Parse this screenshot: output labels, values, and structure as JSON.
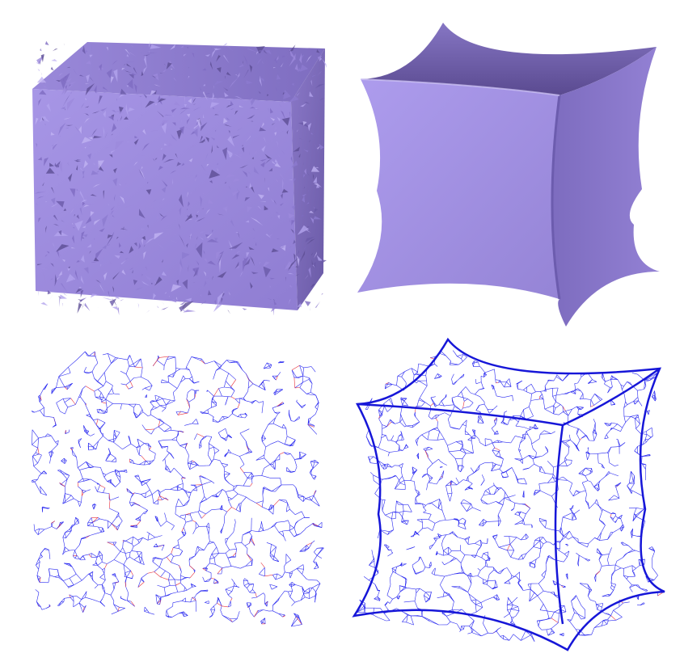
{
  "figure": {
    "panels": [
      {
        "id": "noisy-cube-shaded",
        "render": "shaded",
        "shape": "noisy-cube"
      },
      {
        "id": "smoothed-cube-shaded",
        "render": "shaded",
        "shape": "concave-cube"
      },
      {
        "id": "noisy-cube-wireframe",
        "render": "wireframe",
        "shape": "noisy-cube"
      },
      {
        "id": "smoothed-cube-wireframe",
        "render": "wireframe",
        "shape": "concave-cube"
      }
    ],
    "colors": {
      "surface_light": "#a796e6",
      "surface_mid": "#8f7dd2",
      "surface_dark": "#5a4a90",
      "wire_blue": "#2a2af0",
      "wire_red": "#e8303a",
      "background": "#ffffff"
    }
  }
}
